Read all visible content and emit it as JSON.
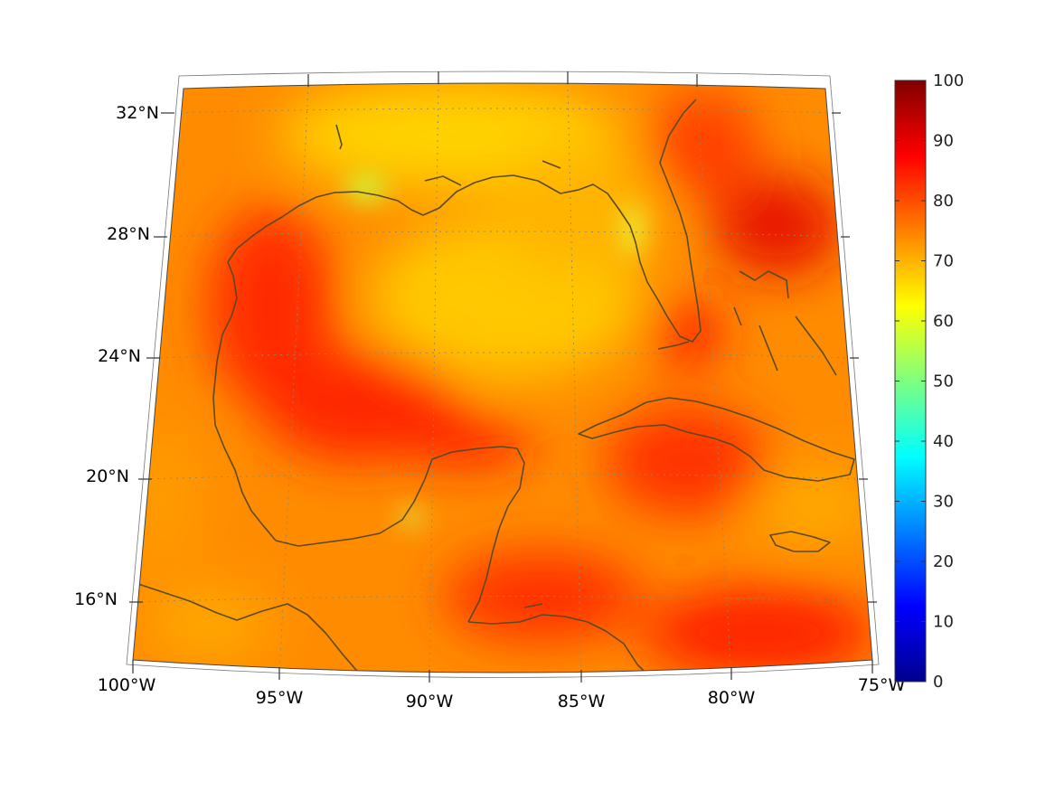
{
  "map": {
    "lat_labels": [
      "32°N",
      "28°N",
      "24°N",
      "20°N",
      "16°N"
    ],
    "lat_values": [
      32,
      28,
      24,
      20,
      16
    ],
    "lon_labels": [
      "100°W",
      "95°W",
      "90°W",
      "85°W",
      "80°W",
      "75°W"
    ],
    "lon_values": [
      -100,
      -95,
      -90,
      -85,
      -80,
      -75
    ],
    "coastline_color": "#5a4a24",
    "gridline_color": "#999999"
  },
  "colorbar": {
    "tick_labels": [
      "0",
      "10",
      "20",
      "30",
      "40",
      "50",
      "60",
      "70",
      "80",
      "90",
      "100"
    ],
    "min": 0,
    "max": 100,
    "colormap": "jet"
  }
}
